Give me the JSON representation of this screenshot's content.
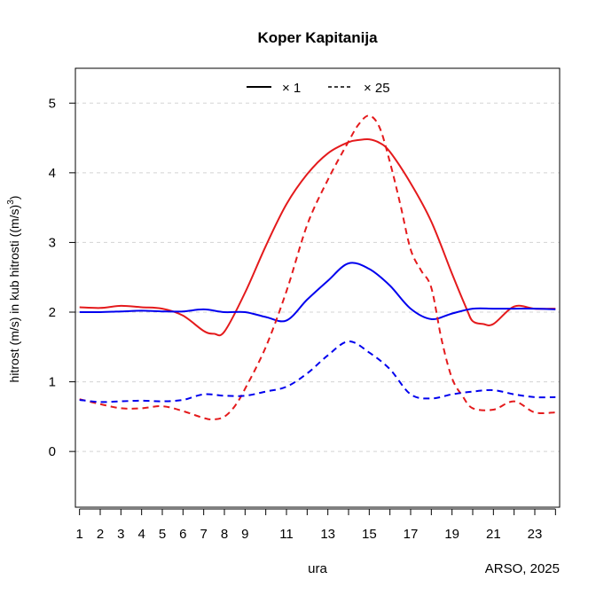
{
  "chart_data": {
    "type": "line",
    "title": "Koper Kapitanija",
    "xlabel": "ura",
    "ylabel": "hitrost (m/s) in kub hitrosti ((m/s)",
    "ylabel_sup": "3",
    "ylabel_close": ")",
    "credit": "ARSO, 2025",
    "xlim": [
      0.8,
      24.2
    ],
    "ylim": [
      -0.8,
      5.5
    ],
    "x_ticks": [
      1,
      2,
      3,
      4,
      5,
      6,
      7,
      8,
      9,
      10,
      11,
      12,
      13,
      14,
      15,
      16,
      17,
      18,
      19,
      20,
      21,
      22,
      23,
      24
    ],
    "x_tick_labels": [
      "1",
      "2",
      "3",
      "4",
      "5",
      "6",
      "7",
      "8",
      "9",
      "",
      "11",
      "",
      "13",
      "",
      "15",
      "",
      "17",
      "",
      "19",
      "",
      "21",
      "",
      "23",
      ""
    ],
    "y_ticks": [
      0,
      1,
      2,
      3,
      4,
      5
    ],
    "y_tick_labels": [
      "0",
      "1",
      "2",
      "3",
      "4",
      "5"
    ],
    "grid": "horizontal dashed",
    "legend_position": "top-center",
    "legend": [
      {
        "label": "× 1",
        "style": "solid"
      },
      {
        "label": "× 25",
        "style": "dashed"
      }
    ],
    "colors": {
      "red": "#e41a1c",
      "blue": "#0000ee"
    },
    "series": [
      {
        "color": "red",
        "style": "solid",
        "scale": "× 1",
        "x": [
          1,
          2,
          3,
          4,
          5,
          6,
          7,
          7.5,
          8,
          9,
          10,
          11,
          12,
          13,
          14,
          14.5,
          15,
          15.5,
          16,
          17,
          18,
          19,
          19.7,
          20,
          20.5,
          21,
          22,
          23,
          24
        ],
        "y": [
          2.07,
          2.06,
          2.09,
          2.07,
          2.05,
          1.95,
          1.73,
          1.69,
          1.72,
          2.28,
          2.95,
          3.55,
          3.98,
          4.28,
          4.44,
          4.47,
          4.48,
          4.43,
          4.3,
          3.85,
          3.3,
          2.55,
          2.05,
          1.87,
          1.83,
          1.83,
          2.08,
          2.05,
          2.05
        ]
      },
      {
        "color": "blue",
        "style": "solid",
        "scale": "× 1",
        "x": [
          1,
          2,
          3,
          4,
          5,
          6,
          7,
          8,
          9,
          10,
          11,
          12,
          13,
          14,
          15,
          16,
          17,
          18,
          19,
          20,
          21,
          22,
          23,
          24
        ],
        "y": [
          2.0,
          2.0,
          2.01,
          2.02,
          2.01,
          2.01,
          2.04,
          2.0,
          2.0,
          1.93,
          1.88,
          2.18,
          2.45,
          2.7,
          2.62,
          2.38,
          2.05,
          1.9,
          1.98,
          2.05,
          2.05,
          2.05,
          2.05,
          2.04
        ]
      },
      {
        "color": "red",
        "style": "dashed",
        "scale": "× 25",
        "x": [
          1,
          2,
          3,
          4,
          5,
          6,
          7,
          7.5,
          8,
          8.5,
          9,
          10,
          11,
          12,
          13,
          14,
          14.5,
          15,
          15.5,
          16,
          16.5,
          17,
          17.5,
          18,
          18.5,
          19,
          19.5,
          20,
          21,
          22,
          23,
          24
        ],
        "y": [
          0.75,
          0.68,
          0.62,
          0.62,
          0.65,
          0.58,
          0.48,
          0.46,
          0.5,
          0.65,
          0.9,
          1.5,
          2.3,
          3.25,
          3.9,
          4.45,
          4.7,
          4.82,
          4.65,
          4.15,
          3.55,
          2.9,
          2.6,
          2.35,
          1.6,
          1.05,
          0.8,
          0.62,
          0.6,
          0.72,
          0.56,
          0.56
        ]
      },
      {
        "color": "blue",
        "style": "dashed",
        "scale": "× 25",
        "x": [
          1,
          2,
          3,
          4,
          5,
          6,
          7,
          8,
          9,
          10,
          11,
          12,
          13,
          14,
          15,
          16,
          17,
          18,
          19,
          20,
          21,
          22,
          23,
          24
        ],
        "y": [
          0.74,
          0.71,
          0.72,
          0.73,
          0.72,
          0.74,
          0.82,
          0.8,
          0.8,
          0.86,
          0.93,
          1.12,
          1.38,
          1.58,
          1.42,
          1.18,
          0.82,
          0.76,
          0.82,
          0.86,
          0.88,
          0.82,
          0.78,
          0.78
        ]
      }
    ]
  }
}
